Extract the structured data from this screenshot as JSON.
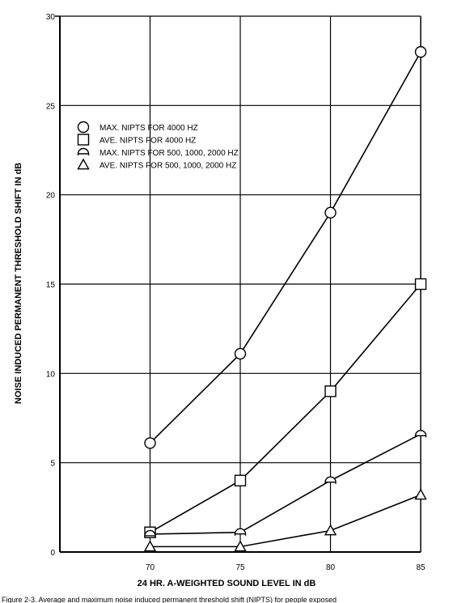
{
  "chart_data": {
    "type": "line",
    "xlabel": "24 HR. A-WEIGHTED SOUND LEVEL IN dB",
    "ylabel": "NOISE INDUCED PERMANENT THRESHOLD SHIFT IN dB",
    "x": [
      70,
      75,
      80,
      85
    ],
    "x_ticks": [
      "70",
      "75",
      "80",
      "85"
    ],
    "xlim": [
      65,
      85
    ],
    "y_ticks": [
      "0",
      "5",
      "10",
      "15",
      "20",
      "25",
      "30"
    ],
    "ylim": [
      0,
      30
    ],
    "grid": "on",
    "legend_position": "upper-left",
    "series": [
      {
        "name": "MAX. NIPTS FOR 4000 HZ",
        "marker": "circle",
        "values": [
          6.1,
          11.1,
          19.0,
          28.0
        ]
      },
      {
        "name": "AVE. NIPTS FOR 4000 HZ",
        "marker": "square",
        "values": [
          1.1,
          4.0,
          9.0,
          15.0
        ]
      },
      {
        "name": "MAX. NIPTS FOR 500, 1000, 2000 HZ",
        "marker": "half-circle",
        "values": [
          1.0,
          1.1,
          4.0,
          6.6
        ]
      },
      {
        "name": "AVE. NIPTS FOR 500, 1000, 2000 HZ",
        "marker": "triangle",
        "values": [
          0.3,
          0.3,
          1.2,
          3.2
        ]
      }
    ]
  },
  "caption": "Figure 2-3. Average and maximum noise induced permanent threshold shift (NIPTS) for people exposed"
}
